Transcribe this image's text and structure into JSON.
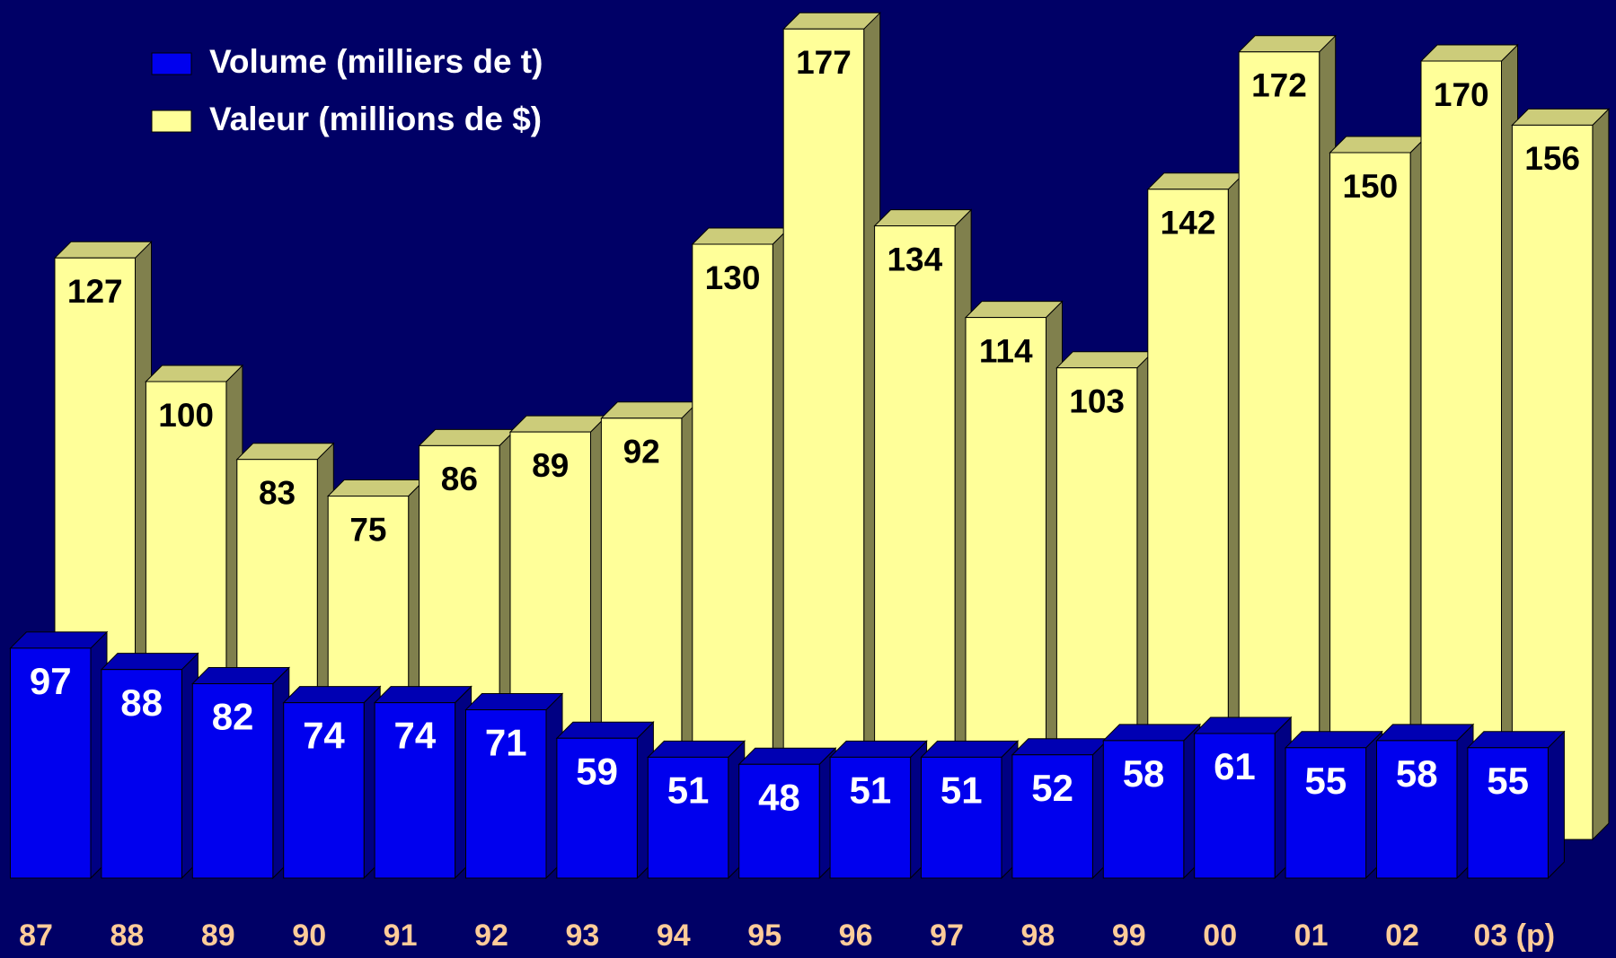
{
  "chart_data": {
    "type": "bar3d",
    "categories": [
      "87",
      "88",
      "89",
      "90",
      "91",
      "92",
      "93",
      "94",
      "95",
      "96",
      "97",
      "98",
      "99",
      "00",
      "01",
      "02",
      "03 (p)"
    ],
    "series": [
      {
        "name": "Volume (milliers de t)",
        "color": "#0000ee",
        "values": [
          97,
          88,
          82,
          74,
          74,
          71,
          59,
          51,
          48,
          51,
          51,
          52,
          58,
          61,
          55,
          58,
          55
        ]
      },
      {
        "name": "Valeur (millions de $)",
        "color": "#ffff99",
        "values": [
          127,
          100,
          83,
          75,
          86,
          89,
          92,
          130,
          177,
          134,
          114,
          103,
          142,
          172,
          150,
          170,
          156
        ]
      }
    ],
    "legend": "top-left"
  }
}
